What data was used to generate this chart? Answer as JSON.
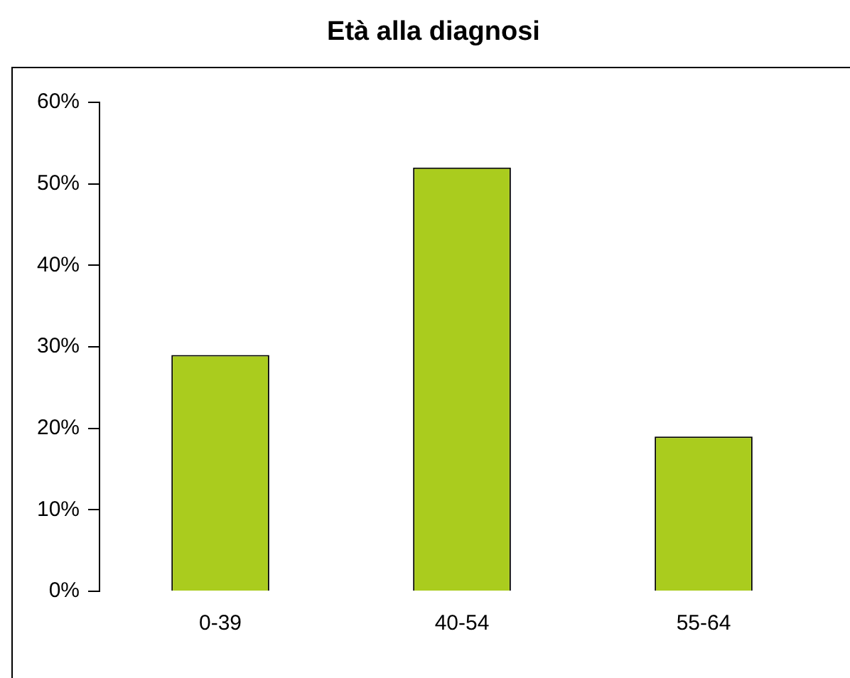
{
  "chart_data": {
    "type": "bar",
    "title": "Età alla diagnosi",
    "categories": [
      "0-39",
      "40-54",
      "55-64"
    ],
    "values": [
      29,
      52,
      19
    ],
    "color": "#aacc1e",
    "ylim": [
      0,
      60
    ],
    "yticks": [
      {
        "value": 0,
        "label": "0%"
      },
      {
        "value": 10,
        "label": "10%"
      },
      {
        "value": 20,
        "label": "20%"
      },
      {
        "value": 30,
        "label": "30%"
      },
      {
        "value": 40,
        "label": "40%"
      },
      {
        "value": 50,
        "label": "50%"
      },
      {
        "value": 60,
        "label": "60%"
      }
    ],
    "grid": false,
    "legend": false
  }
}
